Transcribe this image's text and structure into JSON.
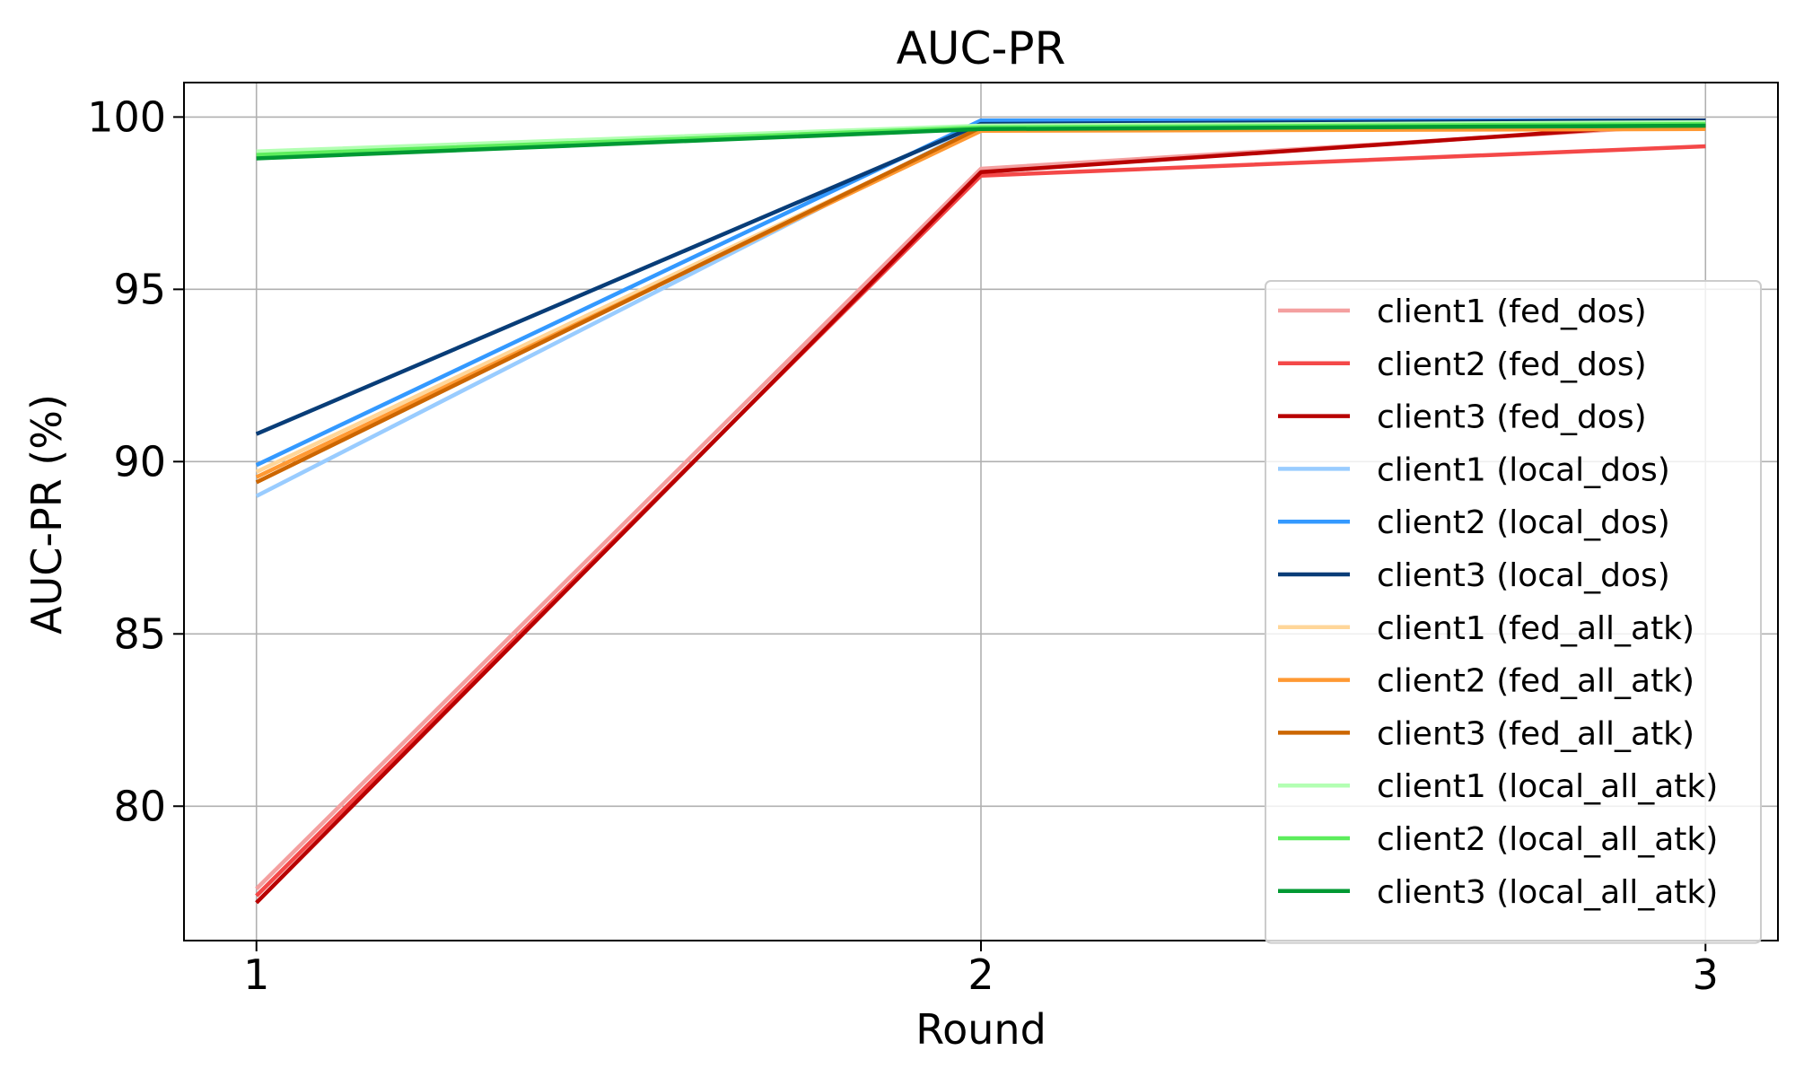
{
  "chart_data": {
    "type": "line",
    "title": "AUC-PR",
    "xlabel": "Round",
    "ylabel": "AUC-PR (%)",
    "x": [
      1,
      2,
      3
    ],
    "xticks": [
      1,
      2,
      3
    ],
    "xlim": [
      0.9,
      3.1
    ],
    "yticks": [
      80,
      85,
      90,
      95,
      100
    ],
    "ylim": [
      76.1,
      101.0
    ],
    "grid": true,
    "legend_position": "center-right",
    "series": [
      {
        "name": "client1 (fed_dos)",
        "color": "#f4a0a0",
        "values": [
          77.6,
          98.5,
          99.8
        ]
      },
      {
        "name": "client2 (fed_dos)",
        "color": "#f44848",
        "values": [
          77.4,
          98.3,
          99.15
        ]
      },
      {
        "name": "client3 (fed_dos)",
        "color": "#b80000",
        "values": [
          77.2,
          98.4,
          99.85
        ]
      },
      {
        "name": "client1 (local_dos)",
        "color": "#99ccff",
        "values": [
          89.0,
          99.75,
          99.9
        ]
      },
      {
        "name": "client2 (local_dos)",
        "color": "#3399ff",
        "values": [
          89.9,
          99.9,
          99.9
        ]
      },
      {
        "name": "client3 (local_dos)",
        "color": "#083d78",
        "values": [
          90.8,
          99.8,
          99.9
        ]
      },
      {
        "name": "client1 (fed_all_atk)",
        "color": "#ffd699",
        "values": [
          89.7,
          99.65,
          99.7
        ]
      },
      {
        "name": "client2 (fed_all_atk)",
        "color": "#ff9933",
        "values": [
          89.55,
          99.6,
          99.65
        ]
      },
      {
        "name": "client3 (fed_all_atk)",
        "color": "#cc6600",
        "values": [
          89.4,
          99.7,
          99.75
        ]
      },
      {
        "name": "client1 (local_all_atk)",
        "color": "#b3ffb3",
        "values": [
          99.0,
          99.75,
          99.85
        ]
      },
      {
        "name": "client2 (local_all_atk)",
        "color": "#5ced5c",
        "values": [
          98.9,
          99.7,
          99.8
        ]
      },
      {
        "name": "client3 (local_all_atk)",
        "color": "#009933",
        "values": [
          98.8,
          99.65,
          99.75
        ]
      }
    ]
  }
}
